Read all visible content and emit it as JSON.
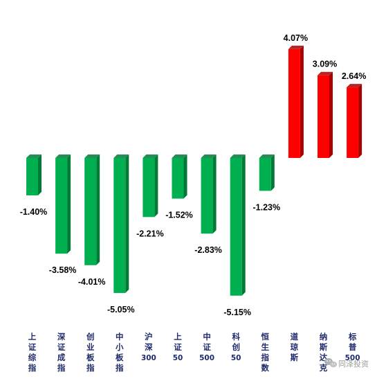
{
  "chart_data": {
    "type": "bar",
    "categories": [
      "上证综指",
      "深证成指",
      "创业板指",
      "中小板指",
      "沪深300",
      "上证50",
      "中证500",
      "科创50",
      "恒生指数",
      "道琼斯",
      "纳斯达克",
      "标普500"
    ],
    "values": [
      -1.4,
      -3.58,
      -4.01,
      -5.05,
      -2.21,
      -1.52,
      -2.83,
      -5.15,
      -1.23,
      4.07,
      3.09,
      2.64
    ],
    "data_labels": [
      "-1.40%",
      "-3.58%",
      "-4.01%",
      "-5.05%",
      "-2.21%",
      "-1.52%",
      "-2.83%",
      "-5.15%",
      "-1.23%",
      "4.07%",
      "3.09%",
      "2.64%"
    ],
    "title": "",
    "xlabel": "",
    "ylabel": "",
    "ylim": [
      -5.15,
      4.07
    ],
    "grid": false,
    "legend": "none",
    "colors": {
      "positive": "#ff0000",
      "positive_side": "#a80000",
      "negative": "#00b050",
      "negative_side": "#007a36",
      "category_label": "#1f2a6b"
    }
  },
  "watermark": {
    "text": "同泽投资",
    "icon": "wechat-icon"
  }
}
